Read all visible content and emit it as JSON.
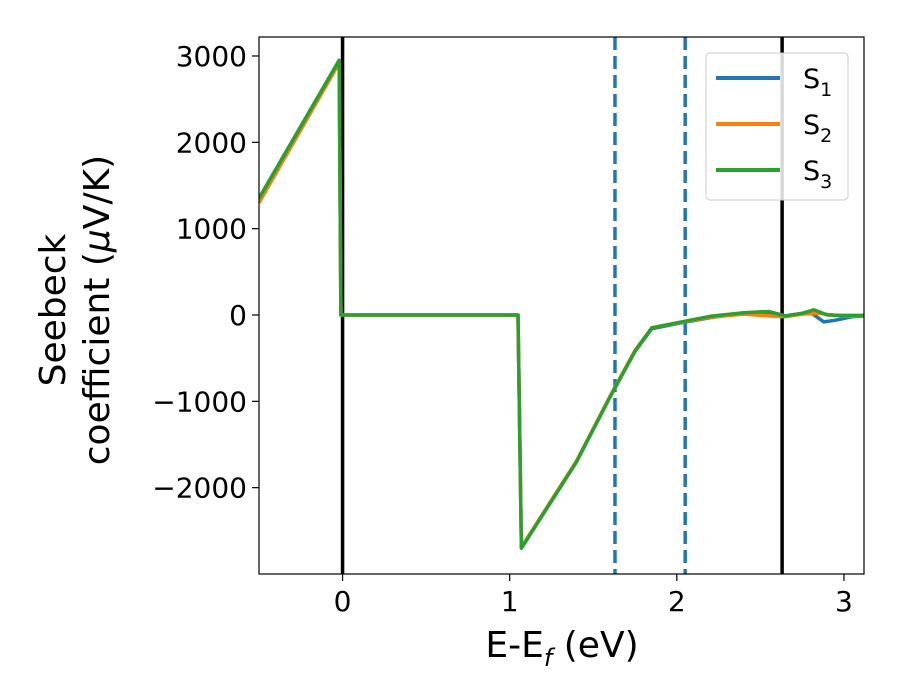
{
  "chart_data": {
    "type": "line",
    "title": "",
    "xlabel": "E-E",
    "xlabel_sub": "f",
    "xlabel_unit": " (eV)",
    "ylabel_line1": "Seebeck",
    "ylabel_line2": "coefficient  (",
    "ylabel_mu": "μ",
    "ylabel_unit": "V/K)",
    "xlim": [
      -0.5,
      3.12
    ],
    "ylim": [
      -3000,
      3220
    ],
    "xticks": [
      0,
      1,
      2,
      3
    ],
    "xtick_labels": [
      "0",
      "1",
      "2",
      "3"
    ],
    "yticks": [
      -2000,
      -1000,
      0,
      1000,
      2000,
      3000
    ],
    "ytick_labels": [
      "−2000",
      "−1000",
      "0",
      "1000",
      "2000",
      "3000"
    ],
    "legend_position": "top-right",
    "grid": false,
    "vlines": [
      {
        "x": 0.0,
        "style": "solid",
        "color": "#000000"
      },
      {
        "x": 1.63,
        "style": "dashed",
        "color": "#1f77b4"
      },
      {
        "x": 2.05,
        "style": "dashed",
        "color": "#1f77b4"
      },
      {
        "x": 2.63,
        "style": "solid",
        "color": "#000000"
      }
    ],
    "series": [
      {
        "name": "S",
        "sub": "1",
        "color": "#1f77b4",
        "points": [
          [
            -0.5,
            1350
          ],
          [
            -0.02,
            2950
          ],
          [
            -0.01,
            0
          ],
          [
            1.05,
            0
          ],
          [
            1.07,
            -2700
          ],
          [
            1.4,
            -1700
          ],
          [
            1.6,
            -950
          ],
          [
            1.75,
            -420
          ],
          [
            1.85,
            -160
          ],
          [
            2.0,
            -100
          ],
          [
            2.2,
            -30
          ],
          [
            2.4,
            20
          ],
          [
            2.55,
            30
          ],
          [
            2.65,
            -10
          ],
          [
            2.75,
            20
          ],
          [
            2.8,
            30
          ],
          [
            2.88,
            -80
          ],
          [
            2.95,
            -60
          ],
          [
            3.05,
            -20
          ],
          [
            3.12,
            -10
          ]
        ]
      },
      {
        "name": "S",
        "sub": "2",
        "color": "#ff7f0e",
        "points": [
          [
            -0.5,
            1300
          ],
          [
            -0.02,
            2920
          ],
          [
            -0.01,
            0
          ],
          [
            1.05,
            0
          ],
          [
            1.07,
            -2690
          ],
          [
            1.4,
            -1690
          ],
          [
            1.6,
            -940
          ],
          [
            1.75,
            -410
          ],
          [
            1.85,
            -150
          ],
          [
            2.0,
            -95
          ],
          [
            2.2,
            -25
          ],
          [
            2.4,
            10
          ],
          [
            2.55,
            -10
          ],
          [
            2.65,
            -20
          ],
          [
            2.75,
            10
          ],
          [
            2.85,
            20
          ],
          [
            2.95,
            -5
          ],
          [
            3.05,
            -15
          ],
          [
            3.12,
            -5
          ]
        ]
      },
      {
        "name": "S",
        "sub": "3",
        "color": "#2ca02c",
        "points": [
          [
            -0.5,
            1350
          ],
          [
            -0.02,
            2950
          ],
          [
            -0.01,
            0
          ],
          [
            1.05,
            0
          ],
          [
            1.07,
            -2700
          ],
          [
            1.4,
            -1700
          ],
          [
            1.6,
            -950
          ],
          [
            1.75,
            -420
          ],
          [
            1.85,
            -150
          ],
          [
            2.0,
            -90
          ],
          [
            2.2,
            -15
          ],
          [
            2.4,
            25
          ],
          [
            2.55,
            40
          ],
          [
            2.65,
            -10
          ],
          [
            2.75,
            20
          ],
          [
            2.82,
            60
          ],
          [
            2.9,
            0
          ],
          [
            3.0,
            -5
          ],
          [
            3.12,
            -5
          ]
        ]
      }
    ]
  }
}
